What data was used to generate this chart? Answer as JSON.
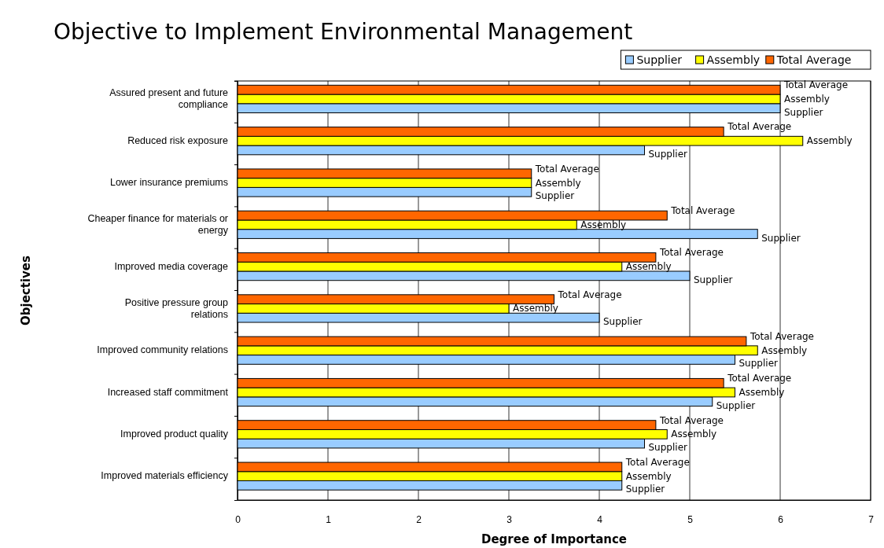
{
  "chart_data": {
    "type": "bar",
    "orientation": "horizontal",
    "title": "Objective to Implement Environmental Management",
    "xlabel": "Degree of Importance",
    "ylabel": "Objectives",
    "categories": [
      "Assured present and future compliance",
      "Reduced risk exposure",
      "Lower insurance premiums",
      "Cheaper finance for materials or energy",
      "Improved media coverage",
      "Positive pressure group relations",
      "Improved community relations",
      "Increased staff commitment",
      "Improved product quality",
      "Improved materials efficiency"
    ],
    "series": [
      {
        "name": "Supplier",
        "color": "#99ccff",
        "values": [
          6,
          4.5,
          3.25,
          5.75,
          5,
          4,
          5.5,
          5.25,
          4.5,
          4.25
        ]
      },
      {
        "name": "Assembly",
        "color": "#ffff00",
        "values": [
          6,
          6.25,
          3.25,
          3.75,
          4.25,
          3,
          5.75,
          5.5,
          4.75,
          4.25
        ]
      },
      {
        "name": "Total Average",
        "color": "#ff6600",
        "values": [
          6,
          5.375,
          3.25,
          4.75,
          4.625,
          3.5,
          5.625,
          5.375,
          4.625,
          4.25
        ]
      }
    ],
    "xlim": [
      0,
      7
    ],
    "xticks": [
      0,
      1,
      2,
      3,
      4,
      5,
      6,
      7
    ],
    "grid": "x",
    "legend": "top right"
  }
}
